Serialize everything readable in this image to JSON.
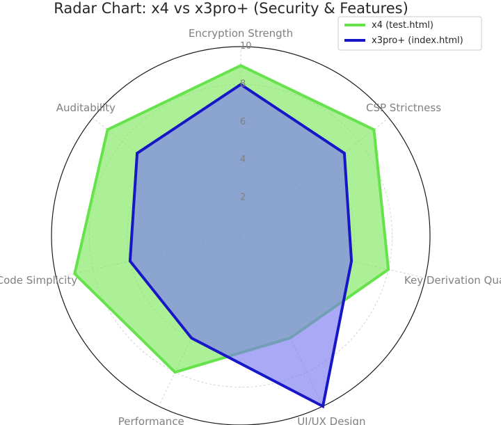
{
  "chart_data": {
    "type": "radar",
    "title": "Radar Chart: x4 vs x3pro+ (Security & Features)",
    "categories": [
      "Encryption Strength",
      "CSP Strictness",
      "Key Derivation Quality",
      "UI/UX Design",
      "Performance",
      "Code Simplicity",
      "Auditability"
    ],
    "rlim": [
      0,
      10
    ],
    "rticks": [
      "2",
      "4",
      "6",
      "8",
      "10"
    ],
    "grid": true,
    "legend": "top-right",
    "series": [
      {
        "name": "x4 (test.html)",
        "values": [
          9,
          9,
          8,
          6,
          8,
          9,
          9
        ],
        "color": "#66e34c",
        "fill": "#7ee85e"
      },
      {
        "name": "x3pro+ (index.html)",
        "values": [
          8,
          7,
          6,
          10,
          6,
          6,
          7
        ],
        "color": "#1717c8",
        "fill": "#7b7bf0"
      }
    ]
  }
}
